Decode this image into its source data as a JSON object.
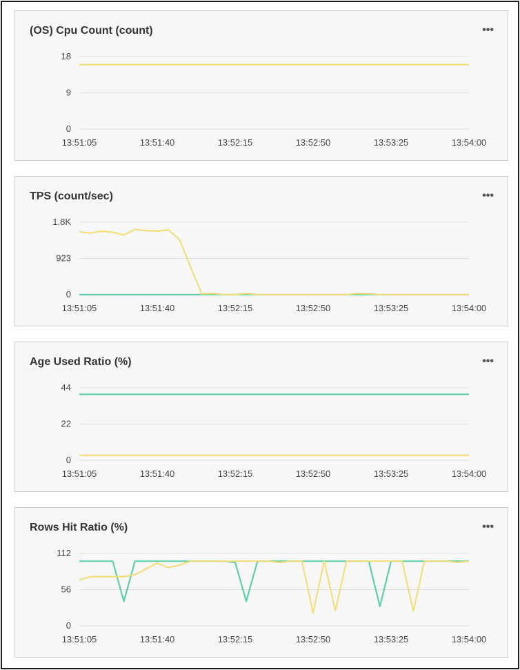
{
  "panels": [
    {
      "title": "(OS) Cpu Count (count)",
      "menu_icon": "more-horizontal-icon"
    },
    {
      "title": "TPS (count/sec)",
      "menu_icon": "more-horizontal-icon"
    },
    {
      "title": "Age Used Ratio (%)",
      "menu_icon": "more-horizontal-icon"
    },
    {
      "title": "Rows Hit Ratio (%)",
      "menu_icon": "more-horizontal-icon"
    }
  ],
  "menu_glyph": "•••",
  "colors": {
    "green": "#5ccfa6",
    "yellow": "#f3de7c",
    "grid": "#dcdcdc"
  },
  "chart_data": [
    {
      "type": "line",
      "title": "(OS) Cpu Count (count)",
      "x_ticks": [
        "13:51:05",
        "13:51:40",
        "13:52:15",
        "13:52:50",
        "13:53:25",
        "13:54:00"
      ],
      "y_ticks": [
        "18",
        "9",
        "0"
      ],
      "ylim": [
        0,
        18
      ],
      "grid": true,
      "x": [
        "13:51:05",
        "13:51:40",
        "13:52:15",
        "13:52:50",
        "13:53:25",
        "13:54:00"
      ],
      "series": [
        {
          "color": "#f3de7c",
          "values": [
            16,
            16,
            16,
            16,
            16,
            16
          ]
        }
      ]
    },
    {
      "type": "line",
      "title": "TPS (count/sec)",
      "x_ticks": [
        "13:51:05",
        "13:51:40",
        "13:52:15",
        "13:52:50",
        "13:53:25",
        "13:54:00"
      ],
      "y_ticks": [
        "1.8K",
        "923",
        "0"
      ],
      "ylim": [
        0,
        1846
      ],
      "grid": true,
      "x": [
        "13:51:05",
        "13:51:10",
        "13:51:15",
        "13:51:20",
        "13:51:25",
        "13:51:30",
        "13:51:35",
        "13:51:40",
        "13:51:45",
        "13:51:50",
        "13:51:55",
        "13:52:00",
        "13:52:05",
        "13:52:10",
        "13:52:15",
        "13:52:20",
        "13:52:25",
        "13:52:30",
        "13:52:35",
        "13:52:40",
        "13:52:45",
        "13:52:50",
        "13:52:55",
        "13:53:00",
        "13:53:05",
        "13:53:10",
        "13:53:15",
        "13:53:20",
        "13:53:25",
        "13:53:30",
        "13:53:35",
        "13:53:40",
        "13:53:45",
        "13:53:50",
        "13:53:55",
        "13:54:00"
      ],
      "series": [
        {
          "color": "#5ccfa6",
          "values": [
            0,
            0,
            0,
            0,
            0,
            0,
            0,
            0,
            0,
            0,
            0,
            0,
            0,
            0,
            0,
            0,
            0,
            0,
            0,
            0,
            0,
            0,
            0,
            0,
            0,
            0,
            0,
            0,
            0,
            0,
            0,
            0,
            0,
            0,
            0,
            0
          ]
        },
        {
          "color": "#f3de7c",
          "values": [
            1600,
            1570,
            1620,
            1590,
            1520,
            1660,
            1630,
            1620,
            1650,
            1400,
            700,
            20,
            30,
            0,
            0,
            30,
            0,
            0,
            0,
            0,
            0,
            0,
            0,
            0,
            0,
            30,
            20,
            0,
            0,
            0,
            0,
            0,
            0,
            0,
            0,
            0
          ]
        }
      ]
    },
    {
      "type": "line",
      "title": "Age Used Ratio (%)",
      "x_ticks": [
        "13:51:05",
        "13:51:40",
        "13:52:15",
        "13:52:50",
        "13:53:25",
        "13:54:00"
      ],
      "y_ticks": [
        "44",
        "22",
        "0"
      ],
      "ylim": [
        0,
        44
      ],
      "grid": true,
      "x": [
        "13:51:05",
        "13:51:40",
        "13:52:15",
        "13:52:50",
        "13:53:25",
        "13:54:00"
      ],
      "series": [
        {
          "color": "#5ccfa6",
          "values": [
            40,
            40,
            40,
            40,
            40,
            40
          ]
        },
        {
          "color": "#f3de7c",
          "values": [
            3,
            3,
            3,
            3,
            3,
            3
          ]
        }
      ]
    },
    {
      "type": "line",
      "title": "Rows Hit Ratio (%)",
      "x_ticks": [
        "13:51:05",
        "13:51:40",
        "13:52:15",
        "13:52:50",
        "13:53:25",
        "13:54:00"
      ],
      "y_ticks": [
        "112",
        "56",
        "0"
      ],
      "ylim": [
        0,
        112
      ],
      "grid": true,
      "x": [
        "13:51:05",
        "13:51:10",
        "13:51:15",
        "13:51:20",
        "13:51:25",
        "13:51:30",
        "13:51:35",
        "13:51:40",
        "13:51:45",
        "13:51:50",
        "13:51:55",
        "13:52:00",
        "13:52:05",
        "13:52:10",
        "13:52:15",
        "13:52:20",
        "13:52:25",
        "13:52:30",
        "13:52:35",
        "13:52:40",
        "13:52:45",
        "13:52:50",
        "13:52:55",
        "13:53:00",
        "13:53:05",
        "13:53:10",
        "13:53:15",
        "13:53:20",
        "13:53:25",
        "13:53:30",
        "13:53:35",
        "13:53:40",
        "13:53:45",
        "13:53:50",
        "13:53:55",
        "13:54:00"
      ],
      "series": [
        {
          "color": "#5ccfa6",
          "values": [
            100,
            100,
            100,
            100,
            38,
            100,
            100,
            100,
            100,
            100,
            100,
            100,
            100,
            100,
            98,
            38,
            100,
            100,
            100,
            100,
            100,
            100,
            100,
            100,
            100,
            100,
            100,
            30,
            100,
            100,
            100,
            100,
            100,
            100,
            100,
            100
          ]
        },
        {
          "color": "#f3de7c",
          "values": [
            71,
            76,
            76,
            76,
            76,
            79,
            88,
            97,
            90,
            94,
            100,
            100,
            100,
            100,
            100,
            100,
            100,
            100,
            98,
            100,
            100,
            20,
            100,
            23,
            100,
            100,
            100,
            100,
            100,
            100,
            23,
            100,
            100,
            100,
            98,
            100
          ]
        }
      ]
    }
  ]
}
